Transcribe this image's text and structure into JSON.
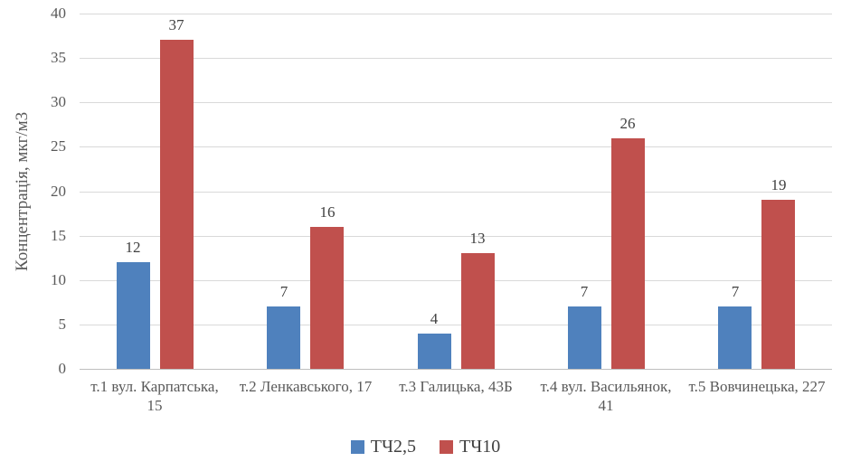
{
  "chart_data": {
    "type": "bar",
    "title": "",
    "xlabel": "",
    "ylabel": "Концентрація, мкг/м3",
    "ylim": [
      0,
      40
    ],
    "yticks": [
      0,
      5,
      10,
      15,
      20,
      25,
      30,
      35,
      40
    ],
    "grid": true,
    "legend_position": "bottom-center",
    "categories": [
      "т.1 вул. Карпатська, 15",
      "т.2 Ленкавського, 17",
      "т.3 Галицька, 43Б",
      "т.4 вул. Васильянок, 41",
      "т.5 Вовчинецька, 227"
    ],
    "category_label_lines": [
      [
        "т.1 вул. Карпатська,",
        "15"
      ],
      [
        "т.2 Ленкавського, 17"
      ],
      [
        "т.3 Галицька, 43Б"
      ],
      [
        "т.4 вул. Васильянок,",
        "41"
      ],
      [
        "т.5 Вовчинецька, 227"
      ]
    ],
    "series": [
      {
        "name": "ТЧ2,5",
        "color": "#4F81BD",
        "values": [
          12,
          7,
          4,
          7,
          7
        ]
      },
      {
        "name": "ТЧ10",
        "color": "#C0504D",
        "values": [
          37,
          16,
          13,
          26,
          19
        ]
      }
    ],
    "colors": {
      "axis_text": "#595959",
      "data_label": "#404040",
      "gridline": "#D9D9D9",
      "axis_line": "#BFBFBF",
      "background": "#FFFFFF"
    }
  }
}
